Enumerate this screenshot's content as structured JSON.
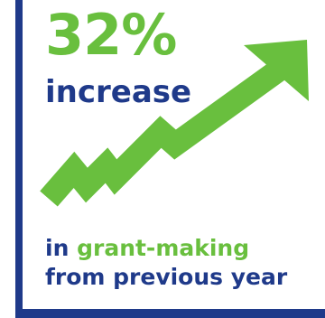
{
  "colors": {
    "navy": "#1f3a8a",
    "green": "#69bf3e"
  },
  "headline": {
    "stat": "32%",
    "label": "increase"
  },
  "caption": {
    "line1_lead": "in",
    "line1_highlight": "grant-making",
    "line2": "from previous year"
  },
  "graphic": {
    "icon": "upward-trend-arrow-icon"
  }
}
